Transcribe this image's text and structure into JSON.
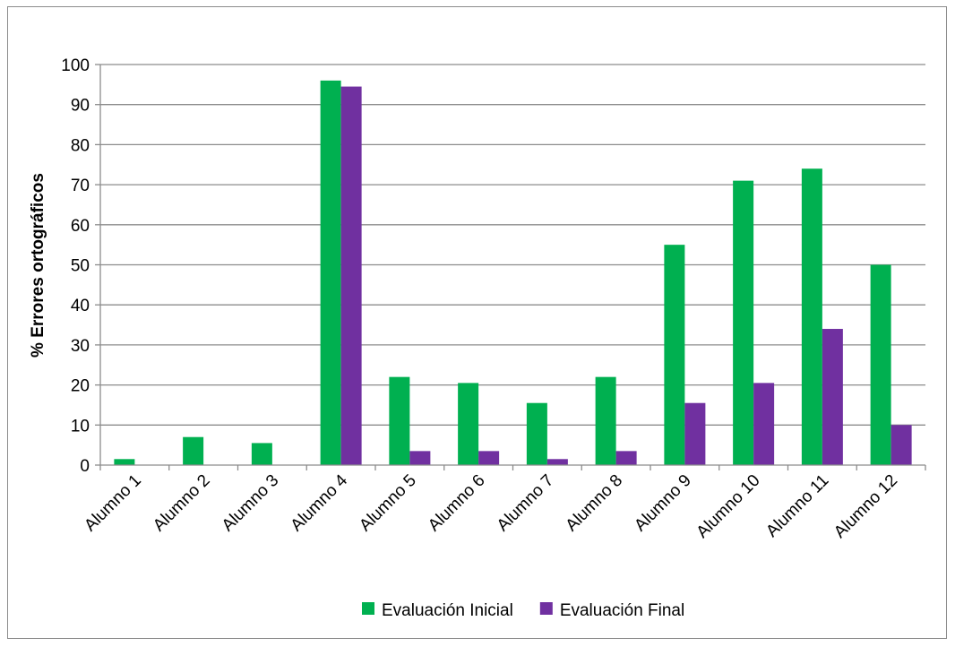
{
  "chart_data": {
    "type": "bar",
    "title": "",
    "xlabel": "",
    "ylabel": "% Errores ortográficos",
    "ylim": [
      0,
      100
    ],
    "yticks": [
      0,
      10,
      20,
      30,
      40,
      50,
      60,
      70,
      80,
      90,
      100
    ],
    "grid": true,
    "legend_position": "bottom",
    "categories": [
      "Alumno 1",
      "Alumno 2",
      "Alumno 3",
      "Alumno 4",
      "Alumno 5",
      "Alumno 6",
      "Alumno 7",
      "Alumno 8",
      "Alumno 9",
      "Alumno 10",
      "Alumno 11",
      "Alumno 12"
    ],
    "series": [
      {
        "name": "Evaluación Inicial",
        "color": "#00b050",
        "values": [
          1.5,
          7,
          5.5,
          96,
          22,
          20.5,
          15.5,
          22,
          55,
          71,
          74,
          50
        ]
      },
      {
        "name": "Evaluación Final",
        "color": "#7030a0",
        "values": [
          0,
          0,
          0,
          94.5,
          3.5,
          3.5,
          1.5,
          3.5,
          15.5,
          20.5,
          34,
          10
        ]
      }
    ]
  }
}
